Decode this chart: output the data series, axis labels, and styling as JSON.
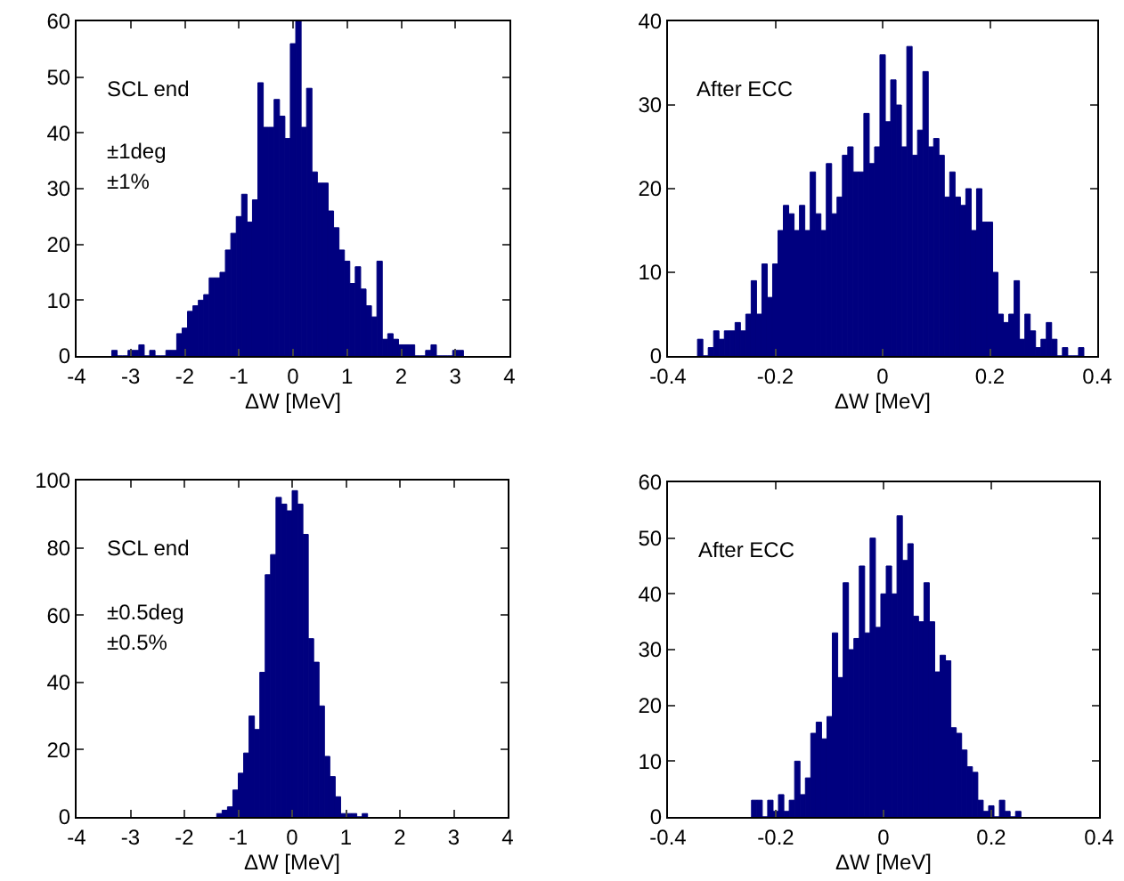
{
  "chart_data": [
    {
      "type": "histogram",
      "xlabel": "ΔW [MeV]",
      "color": "#00007f",
      "annotations": [
        "SCL end",
        "±1deg",
        "±1%"
      ],
      "xlim": [
        -4,
        4
      ],
      "xticks": [
        -4,
        -3,
        -2,
        -1,
        0,
        1,
        2,
        3,
        4
      ],
      "ylim": [
        0,
        60
      ],
      "yticks": [
        0,
        10,
        20,
        30,
        40,
        50,
        60
      ],
      "bins": [
        -3.35,
        -3.25,
        -3.15,
        -3.05,
        -2.95,
        -2.85,
        -2.75,
        -2.65,
        -2.55,
        -2.45,
        -2.35,
        -2.25,
        -2.15,
        -2.05,
        -1.95,
        -1.85,
        -1.75,
        -1.65,
        -1.55,
        -1.45,
        -1.35,
        -1.25,
        -1.15,
        -1.05,
        -0.95,
        -0.85,
        -0.75,
        -0.65,
        -0.55,
        -0.45,
        -0.35,
        -0.25,
        -0.15,
        -0.05,
        0.05,
        0.15,
        0.25,
        0.35,
        0.45,
        0.55,
        0.65,
        0.75,
        0.85,
        0.95,
        1.05,
        1.15,
        1.25,
        1.35,
        1.45,
        1.55,
        1.65,
        1.75,
        1.85,
        1.95,
        2.05,
        2.15,
        2.25,
        2.35,
        2.45,
        2.55,
        2.65,
        2.75,
        2.85,
        2.95,
        3.05,
        3.15
      ],
      "values": [
        1,
        0,
        0,
        1,
        1,
        2,
        0,
        1,
        0,
        0,
        1,
        1,
        4,
        5,
        8,
        9,
        10,
        11,
        14,
        14,
        15,
        19,
        22,
        25,
        29,
        24,
        28,
        49,
        41,
        41,
        46,
        43,
        39,
        56,
        60,
        41,
        48,
        33,
        31,
        31,
        26,
        23,
        19,
        17,
        13,
        16,
        12,
        9,
        7,
        17,
        3,
        4,
        3,
        2,
        2,
        2,
        0,
        0,
        1,
        2,
        0,
        0,
        0,
        1,
        1
      ]
    },
    {
      "type": "histogram",
      "xlabel": "ΔW [MeV]",
      "color": "#00007f",
      "annotations": [
        "After ECC"
      ],
      "xlim": [
        -0.4,
        0.4
      ],
      "xticks": [
        -0.4,
        -0.2,
        0,
        0.2,
        0.4
      ],
      "ylim": [
        0,
        40
      ],
      "yticks": [
        0,
        10,
        20,
        30,
        40
      ],
      "bins": [
        -0.345,
        -0.335,
        -0.325,
        -0.315,
        -0.305,
        -0.295,
        -0.285,
        -0.275,
        -0.265,
        -0.255,
        -0.245,
        -0.235,
        -0.225,
        -0.215,
        -0.205,
        -0.195,
        -0.185,
        -0.175,
        -0.165,
        -0.155,
        -0.145,
        -0.135,
        -0.125,
        -0.115,
        -0.105,
        -0.095,
        -0.085,
        -0.075,
        -0.065,
        -0.055,
        -0.045,
        -0.035,
        -0.025,
        -0.015,
        -0.005,
        0.005,
        0.015,
        0.025,
        0.035,
        0.045,
        0.055,
        0.065,
        0.075,
        0.085,
        0.095,
        0.105,
        0.115,
        0.125,
        0.135,
        0.145,
        0.155,
        0.165,
        0.175,
        0.185,
        0.195,
        0.205,
        0.215,
        0.225,
        0.235,
        0.245,
        0.255,
        0.265,
        0.275,
        0.285,
        0.295,
        0.305,
        0.315,
        0.325,
        0.335,
        0.345,
        0.355,
        0.365,
        0.375
      ],
      "values": [
        2,
        0,
        1,
        3,
        2,
        3,
        3,
        4,
        3,
        5,
        9,
        5,
        11,
        7,
        11,
        15,
        18,
        17,
        15,
        18,
        15,
        22,
        17,
        15,
        23,
        17,
        19,
        24,
        25,
        22,
        22,
        29,
        23,
        25,
        36,
        28,
        33,
        30,
        25,
        37,
        24,
        27,
        34,
        25,
        26,
        24,
        19,
        22,
        19,
        18,
        20,
        15,
        20,
        16,
        16,
        10,
        5,
        4,
        5,
        9,
        2,
        5,
        3,
        1,
        2,
        4,
        2,
        0,
        1,
        0,
        0,
        1
      ]
    },
    {
      "type": "histogram",
      "xlabel": "ΔW [MeV]",
      "color": "#00007f",
      "annotations": [
        "SCL end",
        "±0.5deg",
        "±0.5%"
      ],
      "xlim": [
        -4,
        4
      ],
      "xticks": [
        -4,
        -3,
        -2,
        -1,
        0,
        1,
        2,
        3,
        4
      ],
      "ylim": [
        0,
        100
      ],
      "yticks": [
        0,
        20,
        40,
        60,
        80,
        100
      ],
      "bins": [
        -1.4,
        -1.3,
        -1.2,
        -1.1,
        -1.0,
        -0.9,
        -0.8,
        -0.7,
        -0.6,
        -0.5,
        -0.4,
        -0.3,
        -0.2,
        -0.1,
        0,
        0.1,
        0.2,
        0.3,
        0.4,
        0.5,
        0.6,
        0.7,
        0.8,
        0.9,
        1.0,
        1.1,
        1.2,
        1.3,
        1.4
      ],
      "values": [
        1,
        2,
        3,
        8,
        13,
        19,
        30,
        26,
        43,
        72,
        78,
        95,
        93,
        91,
        97,
        93,
        84,
        53,
        46,
        33,
        18,
        12,
        6,
        1,
        1,
        1,
        0,
        1
      ]
    },
    {
      "type": "histogram",
      "xlabel": "ΔW [MeV]",
      "color": "#00007f",
      "annotations": [
        "After ECC"
      ],
      "xlim": [
        -0.4,
        0.4
      ],
      "xticks": [
        -0.4,
        -0.2,
        0,
        0.2,
        0.4
      ],
      "ylim": [
        0,
        60
      ],
      "yticks": [
        0,
        10,
        20,
        30,
        40,
        50,
        60
      ],
      "bins": [
        -0.245,
        -0.235,
        -0.225,
        -0.215,
        -0.205,
        -0.195,
        -0.185,
        -0.175,
        -0.165,
        -0.155,
        -0.145,
        -0.135,
        -0.125,
        -0.115,
        -0.105,
        -0.095,
        -0.085,
        -0.075,
        -0.065,
        -0.055,
        -0.045,
        -0.035,
        -0.025,
        -0.015,
        -0.005,
        0.005,
        0.015,
        0.025,
        0.035,
        0.045,
        0.055,
        0.065,
        0.075,
        0.085,
        0.095,
        0.105,
        0.115,
        0.125,
        0.135,
        0.145,
        0.155,
        0.165,
        0.175,
        0.185,
        0.195,
        0.205,
        0.215,
        0.225,
        0.235,
        0.245,
        0.255
      ],
      "values": [
        3,
        3,
        0,
        3,
        1,
        4,
        1,
        3,
        10,
        4,
        7,
        15,
        17,
        14,
        18,
        33,
        25,
        42,
        30,
        32,
        45,
        33,
        50,
        34,
        40,
        45,
        40,
        54,
        46,
        49,
        36,
        35,
        42,
        35,
        26,
        29,
        28,
        16,
        15,
        12,
        9,
        8,
        3,
        1,
        2,
        0,
        3,
        1,
        0,
        1
      ]
    }
  ]
}
